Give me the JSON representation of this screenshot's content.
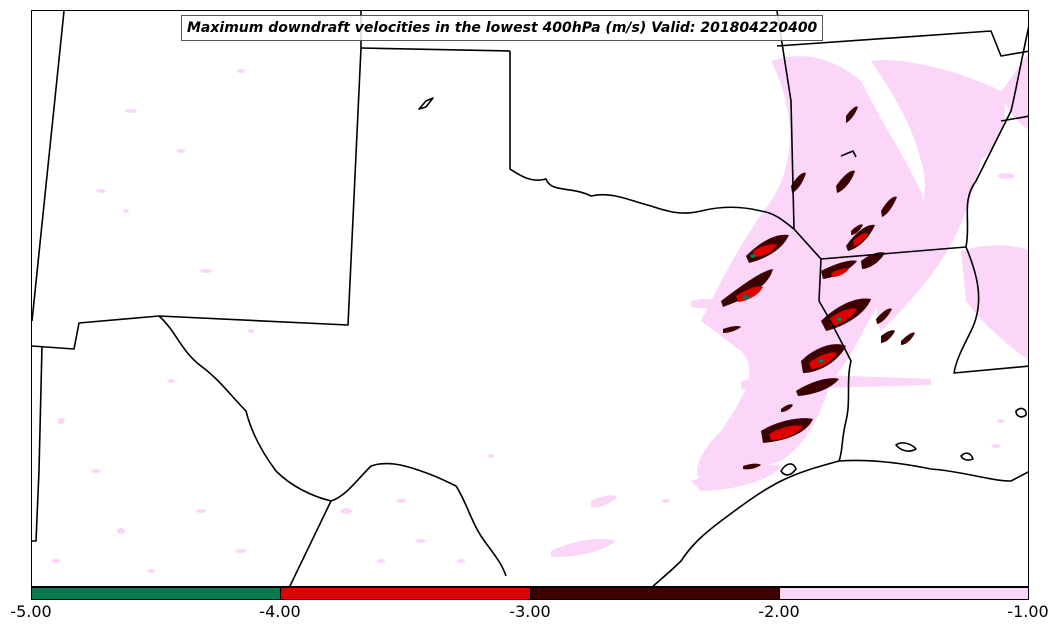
{
  "title": "Maximum downdraft velocities in the lowest 400hPa (m/s) Valid: 201804220400",
  "colorbar": {
    "segments": [
      {
        "from": -5.0,
        "to": -4.0,
        "color": "#007a4d"
      },
      {
        "from": -4.0,
        "to": -3.0,
        "color": "#e00000"
      },
      {
        "from": -3.0,
        "to": -2.0,
        "color": "#3c0000"
      },
      {
        "from": -2.0,
        "to": -1.0,
        "color": "#fbd6f9"
      }
    ],
    "ticks": [
      "-5.00",
      "-4.00",
      "-3.00",
      "-2.00",
      "-1.00"
    ]
  },
  "colors": {
    "light_pink": "#fbd6f9",
    "dark_red": "#3c0000",
    "red": "#e00000",
    "green": "#007a4d",
    "border": "#000000"
  }
}
